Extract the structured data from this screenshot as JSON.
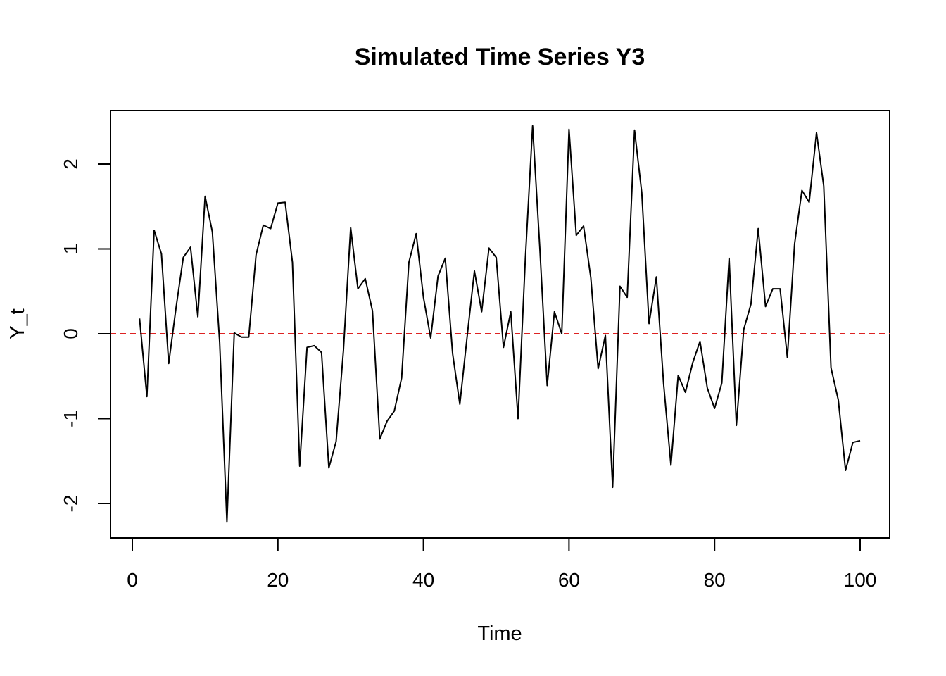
{
  "chart_data": {
    "type": "line",
    "title": "Simulated Time Series Y3",
    "xlabel": "Time",
    "ylabel": "Y_t",
    "xlim": [
      0,
      100
    ],
    "ylim": [
      -2.25,
      2.5
    ],
    "x_ticks": [
      "0",
      "20",
      "40",
      "60",
      "80",
      "100"
    ],
    "y_ticks": [
      "-2",
      "-1",
      "0",
      "1",
      "2"
    ],
    "grid": false,
    "legend": "none",
    "reference_line": {
      "y": 0,
      "color": "#dd2222",
      "style": "dashed"
    },
    "series": [
      {
        "color": "#000000",
        "x": [
          1,
          2,
          3,
          4,
          5,
          6,
          7,
          8,
          9,
          10,
          11,
          12,
          13,
          14,
          15,
          16,
          17,
          18,
          19,
          20,
          21,
          22,
          23,
          24,
          25,
          26,
          27,
          28,
          29,
          30,
          31,
          32,
          33,
          34,
          35,
          36,
          37,
          38,
          39,
          40,
          41,
          42,
          43,
          44,
          45,
          46,
          47,
          48,
          49,
          50,
          51,
          52,
          53,
          54,
          55,
          56,
          57,
          58,
          59,
          60,
          61,
          62,
          63,
          64,
          65,
          66,
          67,
          68,
          69,
          70,
          71,
          72,
          73,
          74,
          75,
          76,
          77,
          78,
          79,
          80,
          81,
          82,
          83,
          84,
          85,
          86,
          87,
          88,
          89,
          90,
          91,
          92,
          93,
          94,
          95,
          96,
          97,
          98,
          99,
          100
        ],
        "values": [
          0.18,
          -0.74,
          1.22,
          0.94,
          -0.35,
          0.3,
          0.9,
          1.02,
          0.2,
          1.62,
          1.2,
          -0.1,
          -2.22,
          0.01,
          -0.04,
          -0.04,
          0.93,
          1.28,
          1.24,
          1.54,
          1.55,
          0.84,
          -1.56,
          -0.16,
          -0.14,
          -0.22,
          -1.58,
          -1.27,
          -0.2,
          1.25,
          0.53,
          0.65,
          0.27,
          -1.24,
          -1.03,
          -0.91,
          -0.52,
          0.84,
          1.18,
          0.43,
          -0.05,
          0.68,
          0.89,
          -0.23,
          -0.83,
          -0.04,
          0.74,
          0.26,
          1.01,
          0.9,
          -0.16,
          0.26,
          -1.0,
          0.89,
          2.45,
          1.0,
          -0.61,
          0.26,
          0.0,
          2.41,
          1.16,
          1.27,
          0.66,
          -0.41,
          -0.02,
          -1.81,
          0.56,
          0.43,
          2.4,
          1.66,
          0.12,
          0.67,
          -0.59,
          -1.55,
          -0.49,
          -0.69,
          -0.34,
          -0.09,
          -0.64,
          -0.88,
          -0.58,
          0.89,
          -1.08,
          0.05,
          0.35,
          1.24,
          0.32,
          0.53,
          0.53,
          -0.28,
          1.06,
          1.69,
          1.55,
          2.37,
          1.74,
          -0.4,
          -0.78,
          -1.61,
          -1.28,
          -1.26
        ]
      }
    ]
  }
}
